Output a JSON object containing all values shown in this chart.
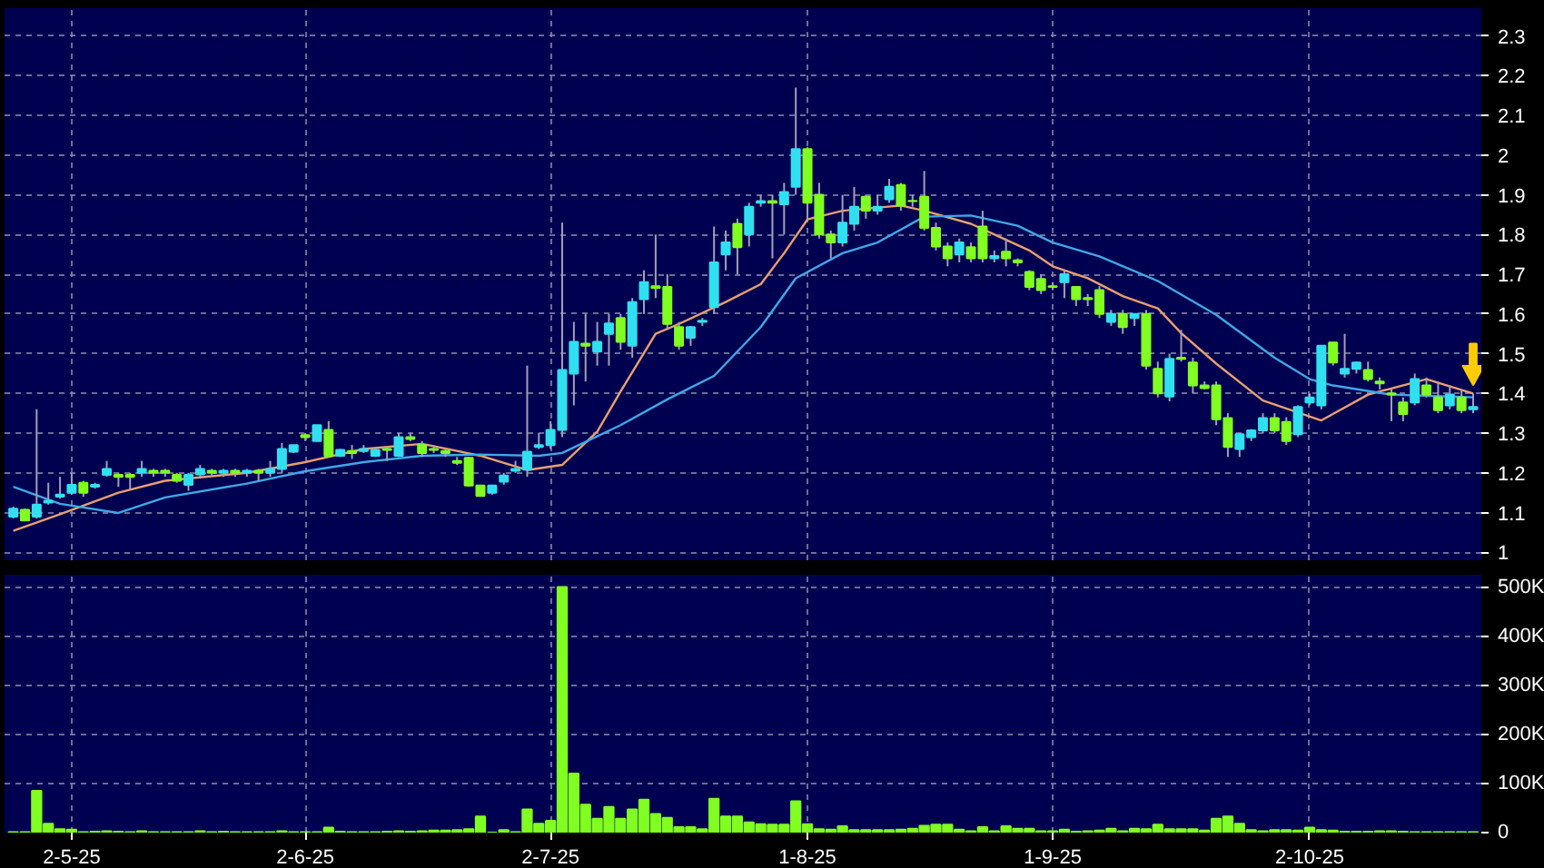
{
  "chart_data": [
    {
      "type": "candlestick",
      "categories": [
        null,
        null,
        null,
        null,
        null,
        null,
        null,
        null,
        null,
        null,
        null,
        null,
        null,
        null,
        null,
        null,
        null,
        null,
        null,
        null,
        null,
        null,
        null,
        null,
        null,
        null,
        null,
        null,
        null,
        null,
        null,
        null,
        null,
        null,
        null,
        null,
        null,
        null,
        null,
        null,
        null,
        null,
        null,
        null,
        null,
        null,
        null,
        null,
        null,
        null,
        null,
        null,
        null,
        null,
        null,
        null,
        null,
        null,
        null,
        null,
        null,
        null,
        null,
        null,
        null,
        null,
        null,
        null,
        null,
        null,
        null,
        null,
        null,
        null,
        null,
        null,
        null,
        null,
        null,
        null,
        null,
        null,
        null,
        null,
        null,
        null,
        null,
        null,
        null,
        null,
        null,
        null,
        null,
        null,
        null,
        null,
        null,
        null,
        null,
        null,
        null,
        null,
        null,
        null,
        null,
        null,
        null,
        null,
        null,
        null,
        null,
        null,
        null,
        null,
        null,
        null,
        null,
        null,
        null,
        null,
        null,
        null,
        null,
        null,
        null,
        null
      ],
      "ohlc": [
        [
          1.09,
          1.115,
          1.085,
          1.11
        ],
        [
          1.107,
          1.11,
          1.08,
          1.08
        ],
        [
          1.09,
          1.36,
          1.085,
          1.12
        ],
        [
          1.125,
          1.175,
          1.12,
          1.13
        ],
        [
          1.14,
          1.19,
          1.135,
          1.145
        ],
        [
          1.15,
          1.2,
          1.145,
          1.17
        ],
        [
          1.175,
          1.18,
          1.14,
          1.15
        ],
        [
          1.165,
          1.175,
          1.16,
          1.17
        ],
        [
          1.195,
          1.23,
          1.19,
          1.21
        ],
        [
          1.195,
          1.2,
          1.165,
          1.19
        ],
        [
          1.195,
          1.2,
          1.16,
          1.19
        ],
        [
          1.2,
          1.23,
          1.19,
          1.21
        ],
        [
          1.205,
          1.21,
          1.19,
          1.2
        ],
        [
          1.205,
          1.21,
          1.19,
          1.2
        ],
        [
          1.195,
          1.2,
          1.175,
          1.18
        ],
        [
          1.17,
          1.2,
          1.155,
          1.195
        ],
        [
          1.196,
          1.22,
          1.19,
          1.21
        ],
        [
          1.205,
          1.21,
          1.19,
          1.2
        ],
        [
          1.2,
          1.21,
          1.19,
          1.205
        ],
        [
          1.205,
          1.21,
          1.19,
          1.2
        ],
        [
          1.2,
          1.21,
          1.19,
          1.205
        ],
        [
          1.205,
          1.21,
          1.18,
          1.2
        ],
        [
          1.2,
          1.23,
          1.19,
          1.21
        ],
        [
          1.21,
          1.275,
          1.2,
          1.26
        ],
        [
          1.253,
          1.27,
          1.25,
          1.27
        ],
        [
          1.295,
          1.3,
          1.28,
          1.29
        ],
        [
          1.28,
          1.32,
          1.28,
          1.32
        ],
        [
          1.308,
          1.33,
          1.24,
          1.243
        ],
        [
          1.243,
          1.26,
          1.24,
          1.258
        ],
        [
          1.255,
          1.27,
          1.235,
          1.25
        ],
        [
          1.255,
          1.27,
          1.25,
          1.26
        ],
        [
          1.243,
          1.26,
          1.24,
          1.258
        ],
        [
          1.26,
          1.265,
          1.23,
          1.258
        ],
        [
          1.243,
          1.3,
          1.24,
          1.29
        ],
        [
          1.29,
          1.3,
          1.28,
          1.285
        ],
        [
          1.27,
          1.28,
          1.24,
          1.25
        ],
        [
          1.26,
          1.27,
          1.25,
          1.258
        ],
        [
          1.255,
          1.26,
          1.24,
          1.25
        ],
        [
          1.23,
          1.24,
          1.22,
          1.225
        ],
        [
          1.238,
          1.24,
          1.165,
          1.168
        ],
        [
          1.168,
          1.17,
          1.14,
          1.142
        ],
        [
          1.15,
          1.17,
          1.145,
          1.168
        ],
        [
          1.178,
          1.2,
          1.17,
          1.193
        ],
        [
          1.205,
          1.23,
          1.2,
          1.21
        ],
        [
          1.208,
          1.47,
          1.19,
          1.253
        ],
        [
          1.265,
          1.3,
          1.26,
          1.27
        ],
        [
          1.27,
          1.33,
          1.26,
          1.308
        ],
        [
          1.308,
          1.83,
          1.29,
          1.459
        ],
        [
          1.45,
          1.58,
          1.37,
          1.53
        ],
        [
          1.525,
          1.6,
          1.43,
          1.52
        ],
        [
          1.505,
          1.58,
          1.47,
          1.53
        ],
        [
          1.55,
          1.6,
          1.47,
          1.576
        ],
        [
          1.59,
          1.6,
          1.51,
          1.53
        ],
        [
          1.52,
          1.64,
          1.49,
          1.63
        ],
        [
          1.637,
          1.71,
          1.6,
          1.68
        ],
        [
          1.67,
          1.8,
          1.64,
          1.665
        ],
        [
          1.668,
          1.7,
          1.56,
          1.575
        ],
        [
          1.567,
          1.58,
          1.51,
          1.52
        ],
        [
          1.54,
          1.57,
          1.52,
          1.567
        ],
        [
          1.58,
          1.59,
          1.57,
          1.583
        ],
        [
          1.617,
          1.82,
          1.6,
          1.73
        ],
        [
          1.75,
          1.81,
          1.71,
          1.78
        ],
        [
          1.827,
          1.84,
          1.7,
          1.768
        ],
        [
          1.8,
          1.88,
          1.77,
          1.87
        ],
        [
          1.88,
          1.9,
          1.87,
          1.884
        ],
        [
          1.884,
          1.9,
          1.74,
          1.88
        ],
        [
          1.876,
          1.93,
          1.8,
          1.907
        ],
        [
          1.92,
          2.17,
          1.9,
          2.015
        ],
        [
          2.015,
          2.02,
          1.84,
          1.88
        ],
        [
          1.9,
          1.93,
          1.79,
          1.8
        ],
        [
          1.8,
          1.81,
          1.74,
          1.78
        ],
        [
          1.78,
          1.9,
          1.77,
          1.83
        ],
        [
          1.827,
          1.92,
          1.81,
          1.87
        ],
        [
          1.895,
          1.9,
          1.84,
          1.86
        ],
        [
          1.86,
          1.9,
          1.85,
          1.87
        ],
        [
          1.889,
          1.94,
          1.88,
          1.92
        ],
        [
          1.925,
          1.93,
          1.86,
          1.873
        ],
        [
          1.885,
          1.9,
          1.87,
          1.884
        ],
        [
          1.895,
          1.96,
          1.81,
          1.817
        ],
        [
          1.817,
          1.83,
          1.76,
          1.77
        ],
        [
          1.77,
          1.78,
          1.72,
          1.74
        ],
        [
          1.75,
          1.79,
          1.73,
          1.78
        ],
        [
          1.768,
          1.78,
          1.73,
          1.74
        ],
        [
          1.82,
          1.86,
          1.73,
          1.74
        ],
        [
          1.74,
          1.76,
          1.73,
          1.746
        ],
        [
          1.757,
          1.79,
          1.72,
          1.74
        ],
        [
          1.735,
          1.74,
          1.72,
          1.73
        ],
        [
          1.706,
          1.71,
          1.66,
          1.668
        ],
        [
          1.688,
          1.7,
          1.65,
          1.66
        ],
        [
          1.67,
          1.68,
          1.66,
          1.668
        ],
        [
          1.68,
          1.71,
          1.64,
          1.7
        ],
        [
          1.668,
          1.67,
          1.62,
          1.637
        ],
        [
          1.64,
          1.65,
          1.62,
          1.637
        ],
        [
          1.66,
          1.67,
          1.59,
          1.6
        ],
        [
          1.58,
          1.61,
          1.57,
          1.6
        ],
        [
          1.6,
          1.61,
          1.55,
          1.567
        ],
        [
          1.59,
          1.6,
          1.57,
          1.6
        ],
        [
          1.6,
          1.61,
          1.46,
          1.47
        ],
        [
          1.462,
          1.48,
          1.39,
          1.4
        ],
        [
          1.392,
          1.5,
          1.38,
          1.487
        ],
        [
          1.49,
          1.56,
          1.48,
          1.487
        ],
        [
          1.478,
          1.49,
          1.4,
          1.42
        ],
        [
          1.42,
          1.43,
          1.41,
          1.413
        ],
        [
          1.42,
          1.43,
          1.32,
          1.335
        ],
        [
          1.338,
          1.35,
          1.24,
          1.265
        ],
        [
          1.26,
          1.3,
          1.24,
          1.297
        ],
        [
          1.29,
          1.31,
          1.28,
          1.307
        ],
        [
          1.307,
          1.35,
          1.3,
          1.338
        ],
        [
          1.338,
          1.35,
          1.3,
          1.307
        ],
        [
          1.328,
          1.34,
          1.27,
          1.28
        ],
        [
          1.297,
          1.37,
          1.29,
          1.366
        ],
        [
          1.377,
          1.4,
          1.37,
          1.39
        ],
        [
          1.37,
          1.52,
          1.36,
          1.52
        ],
        [
          1.528,
          1.53,
          1.47,
          1.478
        ],
        [
          1.45,
          1.55,
          1.44,
          1.462
        ],
        [
          1.462,
          1.48,
          1.45,
          1.478
        ],
        [
          1.459,
          1.48,
          1.43,
          1.436
        ],
        [
          1.43,
          1.44,
          1.41,
          1.425
        ],
        [
          1.4,
          1.41,
          1.33,
          1.397
        ],
        [
          1.377,
          1.39,
          1.33,
          1.348
        ],
        [
          1.377,
          1.45,
          1.37,
          1.436
        ],
        [
          1.42,
          1.44,
          1.39,
          1.397
        ],
        [
          1.39,
          1.43,
          1.35,
          1.358
        ],
        [
          1.37,
          1.42,
          1.36,
          1.397
        ],
        [
          1.39,
          1.41,
          1.35,
          1.358
        ],
        [
          1.36,
          1.4,
          1.35,
          1.366
        ]
      ],
      "colors": [
        "#30e0f0",
        "#80ff20",
        "#30e0f0",
        "#30e0f0",
        "#30e0f0",
        "#30e0f0",
        "#80ff20",
        "#30e0f0",
        "#30e0f0",
        "#80ff20",
        "#80ff20",
        "#30e0f0",
        "#80ff20",
        "#80ff20",
        "#80ff20",
        "#30e0f0",
        "#30e0f0",
        "#80ff20",
        "#30e0f0",
        "#80ff20",
        "#30e0f0",
        "#80ff20",
        "#30e0f0",
        "#30e0f0",
        "#30e0f0",
        "#80ff20",
        "#30e0f0",
        "#80ff20",
        "#30e0f0",
        "#80ff20",
        "#30e0f0",
        "#30e0f0",
        "#80ff20",
        "#30e0f0",
        "#80ff20",
        "#80ff20",
        "#80ff20",
        "#80ff20",
        "#80ff20",
        "#80ff20",
        "#80ff20",
        "#30e0f0",
        "#30e0f0",
        "#30e0f0",
        "#30e0f0",
        "#30e0f0",
        "#30e0f0",
        "#30e0f0",
        "#30e0f0",
        "#80ff20",
        "#30e0f0",
        "#30e0f0",
        "#80ff20",
        "#30e0f0",
        "#30e0f0",
        "#80ff20",
        "#80ff20",
        "#80ff20",
        "#30e0f0",
        "#30e0f0",
        "#30e0f0",
        "#30e0f0",
        "#80ff20",
        "#30e0f0",
        "#30e0f0",
        "#80ff20",
        "#30e0f0",
        "#30e0f0",
        "#80ff20",
        "#80ff20",
        "#80ff20",
        "#30e0f0",
        "#30e0f0",
        "#80ff20",
        "#30e0f0",
        "#30e0f0",
        "#80ff20",
        "#80ff20",
        "#80ff20",
        "#80ff20",
        "#80ff20",
        "#30e0f0",
        "#80ff20",
        "#80ff20",
        "#30e0f0",
        "#80ff20",
        "#80ff20",
        "#80ff20",
        "#80ff20",
        "#80ff20",
        "#30e0f0",
        "#80ff20",
        "#80ff20",
        "#80ff20",
        "#30e0f0",
        "#80ff20",
        "#30e0f0",
        "#80ff20",
        "#80ff20",
        "#30e0f0",
        "#80ff20",
        "#80ff20",
        "#80ff20",
        "#80ff20",
        "#80ff20",
        "#30e0f0",
        "#30e0f0",
        "#30e0f0",
        "#80ff20",
        "#80ff20",
        "#30e0f0",
        "#30e0f0",
        "#30e0f0",
        "#80ff20",
        "#30e0f0",
        "#30e0f0",
        "#80ff20",
        "#80ff20",
        "#80ff20",
        "#80ff20",
        "#30e0f0",
        "#80ff20",
        "#80ff20",
        "#30e0f0",
        "#80ff20",
        "#30e0f0"
      ],
      "series": [
        {
          "type": "line",
          "color": "#e8a070",
          "values": [
            1.054,
            null,
            null,
            null,
            1.096,
            null,
            null,
            null,
            null,
            1.15,
            null,
            null,
            null,
            1.18,
            null,
            null,
            null,
            null,
            null,
            null,
            1.2,
            null,
            null,
            null,
            null,
            1.227,
            null,
            null,
            null,
            null,
            1.26,
            null,
            null,
            null,
            null,
            1.273,
            null,
            null,
            null,
            null,
            1.243,
            null,
            null,
            null,
            1.207,
            null,
            null,
            1.22,
            null,
            null,
            1.304,
            null,
            1.405,
            null,
            null,
            1.55,
            null,
            1.575,
            null,
            null,
            null,
            1.63,
            null,
            null,
            1.675,
            null,
            1.753,
            null,
            1.838,
            null,
            null,
            1.86,
            null,
            null,
            null,
            null,
            1.873,
            null,
            1.86,
            null,
            null,
            null,
            1.827,
            null,
            null,
            null,
            null,
            1.76,
            null,
            1.72,
            null,
            null,
            1.69,
            null,
            null,
            1.645,
            null,
            null,
            1.614,
            null,
            1.552,
            null,
            null,
            1.475,
            null,
            null,
            null,
            1.382,
            null,
            null,
            null,
            null,
            1.332,
            null,
            null,
            null,
            1.397,
            null,
            null,
            null,
            null,
            1.436,
            null,
            null,
            null,
            1.4
          ]
        },
        {
          "type": "line",
          "color": "#40a8e8",
          "values": [
            1.165,
            null,
            null,
            null,
            1.122,
            null,
            null,
            null,
            null,
            1.099,
            null,
            null,
            null,
            1.138,
            null,
            null,
            null,
            null,
            null,
            null,
            1.173,
            null,
            null,
            null,
            null,
            1.204,
            null,
            null,
            null,
            null,
            1.227,
            null,
            null,
            null,
            null,
            1.243,
            null,
            null,
            null,
            null,
            1.246,
            null,
            null,
            null,
            null,
            1.243,
            null,
            1.25,
            null,
            null,
            null,
            null,
            1.32,
            null,
            null,
            null,
            1.385,
            null,
            null,
            null,
            1.444,
            null,
            null,
            null,
            1.567,
            null,
            null,
            1.69,
            null,
            null,
            null,
            1.753,
            null,
            null,
            1.78,
            null,
            null,
            null,
            1.845,
            null,
            null,
            null,
            1.848,
            null,
            null,
            null,
            1.822,
            null,
            null,
            1.78,
            null,
            null,
            null,
            1.745,
            null,
            null,
            null,
            null,
            1.683,
            null,
            null,
            null,
            null,
            1.598,
            null,
            null,
            null,
            null,
            1.49,
            null,
            null,
            1.436,
            null,
            1.42,
            null,
            null,
            null,
            null,
            1.397,
            null,
            null,
            null,
            null,
            null,
            null,
            1.39
          ]
        }
      ],
      "ylim": [
        0.98,
        2.37
      ],
      "yticks": [
        1,
        1.1,
        1.2,
        1.3,
        1.4,
        1.5,
        1.6,
        1.7,
        1.8,
        1.9,
        2,
        2.1,
        2.2,
        2.3
      ],
      "grid": true,
      "tick_labels": "y"
    },
    {
      "type": "bar",
      "categories": [
        null,
        null,
        null,
        null,
        null,
        "2-5-25",
        null,
        null,
        null,
        null,
        null,
        null,
        null,
        null,
        null,
        null,
        null,
        null,
        null,
        null,
        null,
        null,
        null,
        null,
        null,
        "2-6-25",
        null,
        null,
        null,
        null,
        null,
        null,
        null,
        null,
        null,
        null,
        null,
        null,
        null,
        null,
        null,
        null,
        null,
        null,
        null,
        null,
        "2-7-25",
        null,
        null,
        null,
        null,
        null,
        null,
        null,
        null,
        null,
        null,
        null,
        null,
        null,
        null,
        null,
        null,
        null,
        null,
        null,
        null,
        null,
        "1-8-25",
        null,
        null,
        null,
        null,
        null,
        null,
        null,
        null,
        null,
        null,
        null,
        null,
        null,
        null,
        null,
        null,
        null,
        null,
        null,
        null,
        "1-9-25",
        null,
        null,
        null,
        null,
        null,
        null,
        null,
        null,
        null,
        null,
        null,
        null,
        null,
        null,
        null,
        null,
        null,
        null,
        null,
        null,
        null,
        "2-10-25",
        null,
        null,
        null,
        null,
        null,
        null,
        null,
        null,
        null,
        null,
        null,
        null,
        null,
        null
      ],
      "values": [
        1000,
        1000,
        85000,
        18000,
        7000,
        6000,
        1000,
        2000,
        3000,
        2000,
        1000,
        3000,
        1000,
        1000,
        1000,
        1000,
        3000,
        1000,
        2000,
        1000,
        1000,
        1000,
        1000,
        3000,
        1000,
        1000,
        1000,
        10000,
        2000,
        1000,
        1000,
        1000,
        2000,
        3000,
        2000,
        3000,
        4000,
        4000,
        5000,
        7000,
        33000,
        0,
        5000,
        1000,
        47000,
        18000,
        24000,
        500000,
        120000,
        57000,
        28000,
        52000,
        28000,
        47000,
        67000,
        38000,
        30000,
        11000,
        11000,
        7000,
        69000,
        33000,
        33000,
        21000,
        17000,
        16000,
        16000,
        64000,
        17000,
        7000,
        6000,
        13000,
        5000,
        5000,
        5000,
        5000,
        6000,
        8000,
        14000,
        16000,
        16000,
        6000,
        3000,
        11000,
        3000,
        13000,
        8000,
        8000,
        3000,
        3000,
        6000,
        2000,
        3000,
        4000,
        8000,
        3000,
        8000,
        7000,
        16000,
        7000,
        7000,
        7000,
        4000,
        28000,
        33000,
        18000,
        5000,
        3000,
        5000,
        5000,
        4000,
        10000,
        5000,
        4000,
        2000,
        2000,
        2000,
        3000,
        3000,
        2000,
        1000,
        1000,
        1000,
        1000,
        1000,
        1000
      ],
      "color": "#80ff20",
      "ylim": [
        0,
        525000
      ],
      "yticks": [
        0,
        {
          "value": 100000,
          "label": "100K"
        },
        {
          "value": 200000,
          "label": "200K"
        },
        {
          "value": 300000,
          "label": "300K"
        },
        {
          "value": 400000,
          "label": "400K"
        },
        {
          "value": 500000,
          "label": "500K"
        }
      ],
      "grid": true
    }
  ]
}
